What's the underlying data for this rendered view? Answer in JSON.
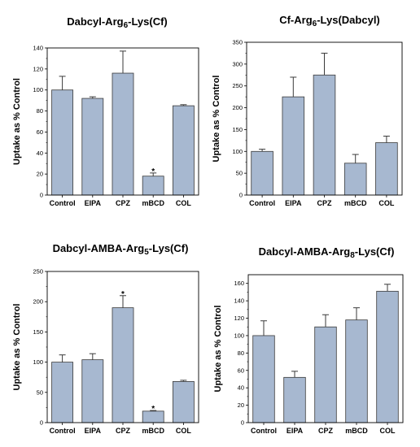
{
  "chart_data": [
    {
      "type": "bar",
      "title_prefix": "Dabcyl-Arg",
      "title_sub": "6",
      "title_suffix": "-Lys(Cf)",
      "ylabel": "Uptake as % Control",
      "xlabel": "",
      "categories": [
        "Control",
        "EIPA",
        "CPZ",
        "mBCD",
        "COL"
      ],
      "values": [
        100,
        92,
        116,
        18,
        85
      ],
      "errors": [
        13,
        1.5,
        21,
        3,
        1
      ],
      "annotations": [
        "",
        "",
        "",
        "*",
        ""
      ],
      "ylim": [
        0,
        140
      ],
      "yticks": [
        0,
        20,
        40,
        60,
        80,
        100,
        120,
        140
      ],
      "bar_color": "#a7b8d0"
    },
    {
      "type": "bar",
      "title_prefix": "Cf-Arg",
      "title_sub": "6",
      "title_suffix": "-Lys(Dabcyl)",
      "ylabel": "Uptake as % Control",
      "xlabel": "",
      "categories": [
        "Control",
        "EIPA",
        "CPZ",
        "mBCD",
        "COL"
      ],
      "values": [
        100,
        225,
        275,
        73,
        120
      ],
      "errors": [
        5,
        45,
        50,
        20,
        15
      ],
      "annotations": [
        "",
        "",
        "",
        "",
        ""
      ],
      "ylim": [
        0,
        350
      ],
      "yticks": [
        0,
        50,
        100,
        150,
        200,
        250,
        300,
        350
      ],
      "bar_color": "#a7b8d0"
    },
    {
      "type": "bar",
      "title_prefix": "Dabcyl-AMBA-Arg",
      "title_sub": "5",
      "title_suffix": "-Lys(Cf)",
      "ylabel": "Uptake as % Control",
      "xlabel": "",
      "categories": [
        "Control",
        "EIPA",
        "CPZ",
        "mBCD",
        "COL"
      ],
      "values": [
        100,
        104,
        190,
        19,
        68
      ],
      "errors": [
        12,
        10,
        20,
        1,
        2
      ],
      "annotations": [
        "",
        "",
        "*",
        "*",
        ""
      ],
      "ylim": [
        0,
        250
      ],
      "yticks": [
        0,
        50,
        100,
        150,
        200,
        250
      ],
      "bar_color": "#a7b8d0"
    },
    {
      "type": "bar",
      "title_prefix": "Dabcyl-AMBA-Arg",
      "title_sub": "8",
      "title_suffix": "-Lys(Cf)",
      "ylabel": "Uptake as % Control",
      "xlabel": "",
      "categories": [
        "Control",
        "EIPA",
        "CPZ",
        "mBCD",
        "COL"
      ],
      "values": [
        100,
        52,
        110,
        118,
        151
      ],
      "errors": [
        17,
        7,
        14,
        14,
        8
      ],
      "annotations": [
        "",
        "",
        "",
        "",
        ""
      ],
      "ylim": [
        0,
        170
      ],
      "yticks": [
        0,
        20,
        40,
        60,
        80,
        100,
        120,
        140,
        160
      ],
      "bar_color": "#a7b8d0"
    }
  ]
}
